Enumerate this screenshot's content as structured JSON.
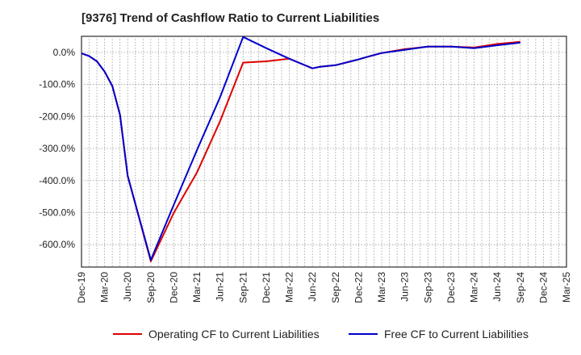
{
  "chart_data": {
    "type": "line",
    "title": "[9376]  Trend of Cashflow Ratio to Current Liabilities",
    "xlabel": "",
    "ylabel": "",
    "x_tick_labels": [
      "Dec-19",
      "Mar-20",
      "Jun-20",
      "Sep-20",
      "Dec-20",
      "Mar-21",
      "Jun-21",
      "Sep-21",
      "Dec-21",
      "Mar-22",
      "Jun-22",
      "Sep-22",
      "Dec-22",
      "Mar-23",
      "Jun-23",
      "Sep-23",
      "Dec-23",
      "Mar-24",
      "Jun-24",
      "Sep-24",
      "Dec-24",
      "Mar-25"
    ],
    "y_tick_labels": [
      "0.0%",
      "-100.0%",
      "-200.0%",
      "-300.0%",
      "-400.0%",
      "-500.0%",
      "-600.0%"
    ],
    "y_ticks": [
      0,
      -100,
      -200,
      -300,
      -400,
      -500,
      -600
    ],
    "ylim": [
      -670,
      50
    ],
    "x": [
      "Dec-19",
      "Jan-20",
      "Feb-20",
      "Mar-20",
      "Apr-20",
      "May-20",
      "Jun-20",
      "Sep-20",
      "Dec-20",
      "Mar-21",
      "Jun-21",
      "Sep-21",
      "Dec-21",
      "Mar-22",
      "Jun-22",
      "Jul-22",
      "Sep-22",
      "Dec-22",
      "Jan-23",
      "Mar-23",
      "Jun-23",
      "Sep-23",
      "Dec-23",
      "Mar-24",
      "Jun-24",
      "Sep-24"
    ],
    "grid": true,
    "legend_position": "bottom",
    "series": [
      {
        "name": "Operating CF to Current Liabilities",
        "color": "#dd0000",
        "values": [
          -3,
          -12,
          -28,
          -60,
          -105,
          -195,
          -385,
          -652,
          -500,
          -375,
          -215,
          -32,
          -28,
          -20,
          -50,
          -45,
          -40,
          -22,
          -15,
          -2,
          10,
          18,
          18,
          15,
          26,
          33
        ]
      },
      {
        "name": "Free CF to Current Liabilities",
        "color": "#0000cc",
        "values": [
          -3,
          -12,
          -28,
          -60,
          -105,
          -195,
          -385,
          -648,
          -475,
          -305,
          -140,
          48,
          13,
          -20,
          -50,
          -45,
          -40,
          -22,
          -15,
          -2,
          8,
          18,
          18,
          13,
          22,
          30
        ]
      }
    ]
  }
}
